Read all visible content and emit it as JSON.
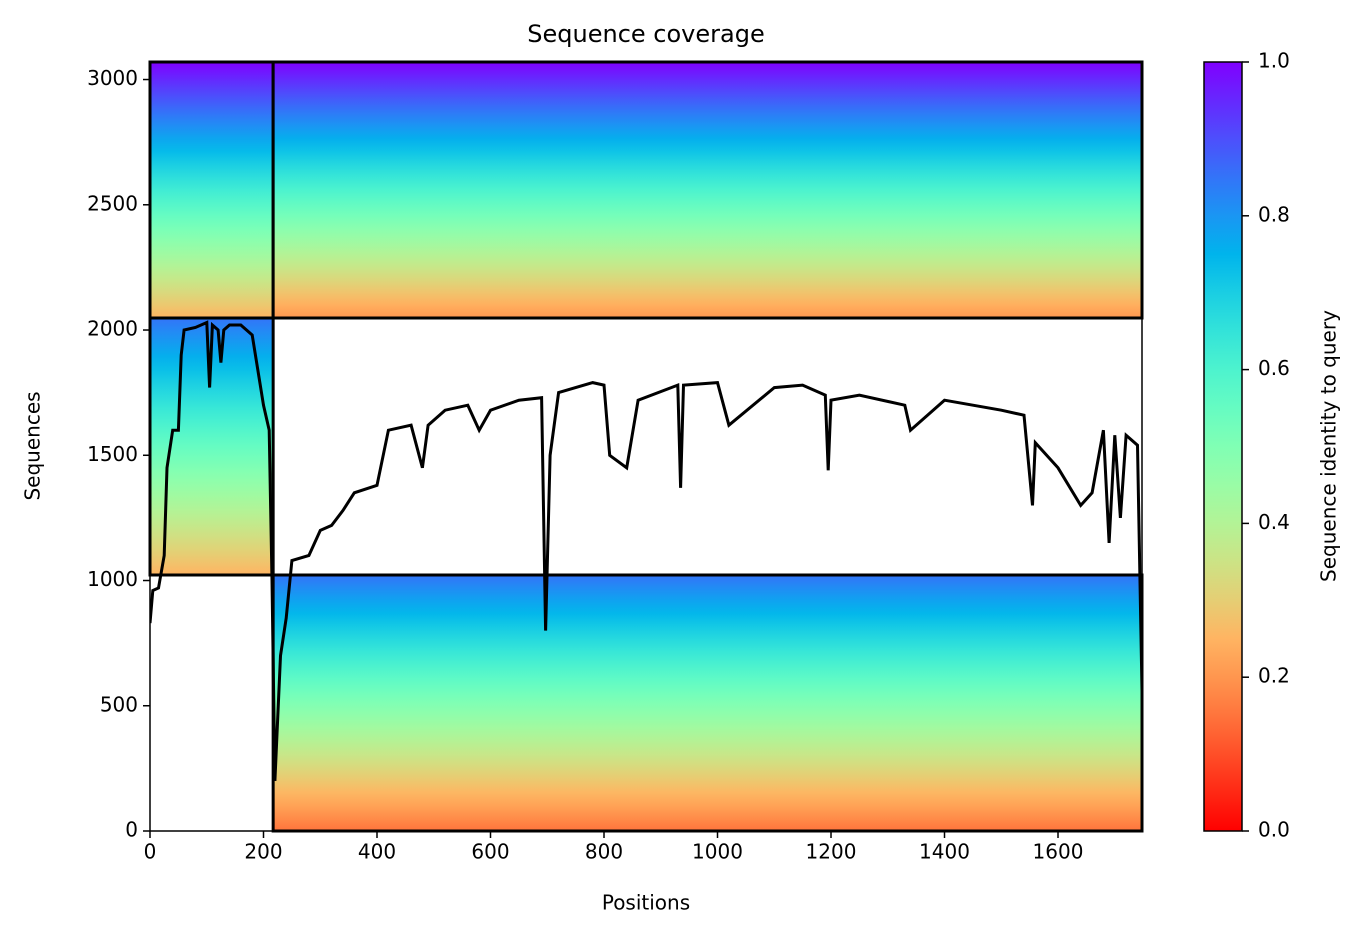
{
  "chart_data": {
    "type": "coverage",
    "title": "Sequence coverage",
    "x_label": "Positions",
    "y_label": "Sequences",
    "xlim": [
      0,
      1748
    ],
    "ylim": [
      0,
      3070
    ],
    "xticks": [
      0,
      200,
      400,
      600,
      800,
      1000,
      1200,
      1400,
      1600
    ],
    "yticks": [
      0,
      500,
      1000,
      1500,
      2000,
      2500,
      3000
    ],
    "blocks": [
      {
        "x": [
          0,
          217
        ],
        "y": [
          2048,
          3070
        ],
        "identity": [
          0.25,
          1.0
        ]
      },
      {
        "x": [
          217,
          1748
        ],
        "y": [
          2048,
          3070
        ],
        "identity": [
          0.2,
          1.0
        ]
      },
      {
        "x": [
          0,
          217
        ],
        "y": [
          1022,
          2048
        ],
        "identity": [
          0.25,
          0.85
        ]
      },
      {
        "x": [
          217,
          1748
        ],
        "y": [
          0,
          1022
        ],
        "identity": [
          0.15,
          0.85
        ]
      }
    ],
    "series": [
      {
        "name": "coverage",
        "color": "#000000",
        "x": [
          0,
          5,
          15,
          25,
          30,
          40,
          50,
          55,
          60,
          80,
          100,
          105,
          110,
          120,
          125,
          130,
          140,
          160,
          180,
          200,
          210,
          215,
          220,
          230,
          240,
          250,
          280,
          300,
          320,
          340,
          360,
          400,
          420,
          460,
          480,
          490,
          520,
          560,
          580,
          600,
          650,
          690,
          697,
          705,
          720,
          780,
          800,
          810,
          840,
          860,
          930,
          935,
          940,
          1000,
          1020,
          1100,
          1150,
          1190,
          1195,
          1200,
          1250,
          1330,
          1340,
          1400,
          1500,
          1540,
          1555,
          1560,
          1600,
          1640,
          1660,
          1680,
          1690,
          1700,
          1710,
          1720,
          1740,
          1748
        ],
        "values": [
          830,
          960,
          970,
          1100,
          1450,
          1600,
          1600,
          1900,
          2000,
          2010,
          2030,
          1770,
          2020,
          2000,
          1870,
          2000,
          2020,
          2020,
          1980,
          1700,
          1600,
          1000,
          200,
          700,
          850,
          1080,
          1100,
          1200,
          1220,
          1280,
          1350,
          1380,
          1600,
          1620,
          1450,
          1620,
          1680,
          1700,
          1600,
          1680,
          1720,
          1730,
          800,
          1500,
          1750,
          1790,
          1780,
          1500,
          1450,
          1720,
          1780,
          1370,
          1780,
          1790,
          1620,
          1770,
          1780,
          1740,
          1440,
          1720,
          1740,
          1700,
          1600,
          1720,
          1680,
          1660,
          1300,
          1550,
          1450,
          1300,
          1350,
          1600,
          1150,
          1580,
          1250,
          1580,
          1540,
          560
        ]
      }
    ],
    "colorbar": {
      "label": "Sequence identity to query",
      "lim": [
        0,
        1
      ],
      "ticks": [
        {
          "value": 0,
          "label": "0.0"
        },
        0.2,
        0.4,
        0.6,
        0.8,
        {
          "value": 1,
          "label": "1.0"
        }
      ]
    }
  }
}
